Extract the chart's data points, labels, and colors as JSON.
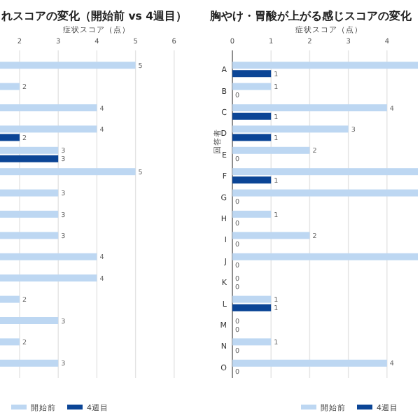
{
  "chart_data": [
    {
      "type": "bar",
      "orientation": "horizontal",
      "title": "れスコアの変化（開始前 vs 4週目）",
      "xlabel": "症状スコア（点）",
      "categories": [
        null,
        null,
        null,
        null,
        null,
        null,
        null,
        null,
        null,
        null,
        null,
        null,
        null,
        null,
        null
      ],
      "series": [
        {
          "name": "開始前",
          "color": "#bdd7f2",
          "values": [
            5,
            2,
            4,
            4,
            3,
            5,
            3,
            3,
            3,
            4,
            4,
            2,
            3,
            2,
            3
          ]
        },
        {
          "name": "4週目",
          "color": "#0b4596",
          "values": [
            null,
            null,
            null,
            2,
            3,
            null,
            null,
            null,
            null,
            null,
            null,
            null,
            null,
            null,
            null
          ]
        }
      ],
      "xlim": [
        0,
        6
      ],
      "xticks": [
        2,
        3,
        4,
        5,
        6
      ],
      "grid": "x",
      "legend": "bottom",
      "data_labels": true
    },
    {
      "type": "bar",
      "orientation": "horizontal",
      "title": "胸やけ・胃酸が上がる感じスコアの変化",
      "xlabel": "症状スコア（点）",
      "ylabel": "回答者",
      "categories": [
        "A",
        "B",
        "C",
        "D",
        "E",
        "F",
        "G",
        "H",
        "I",
        "J",
        "K",
        "L",
        "M",
        "N",
        "O"
      ],
      "series": [
        {
          "name": "開始前",
          "color": "#bdd7f2",
          "values": [
            4.8,
            1,
            4,
            3,
            2,
            4.8,
            4.8,
            1,
            2,
            4.8,
            0,
            1,
            0,
            1,
            4
          ],
          "value_labels": [
            null,
            "1",
            "4",
            "3",
            "2",
            null,
            null,
            "1",
            "2",
            null,
            "0",
            "1",
            "0",
            "1",
            "4"
          ]
        },
        {
          "name": "4週目",
          "color": "#0b4596",
          "values": [
            1,
            0,
            1,
            1,
            0,
            1,
            0,
            0,
            0,
            0,
            0,
            1,
            0,
            0,
            0
          ],
          "value_labels": [
            "1",
            "0",
            "1",
            "1",
            "0",
            "1",
            "0",
            "0",
            "0",
            "0",
            "0",
            "1",
            "0",
            "0",
            "0"
          ]
        }
      ],
      "xlim": [
        0,
        4.8
      ],
      "xticks": [
        0,
        1,
        2,
        3,
        4
      ],
      "grid": "x",
      "legend": "bottom"
    }
  ]
}
